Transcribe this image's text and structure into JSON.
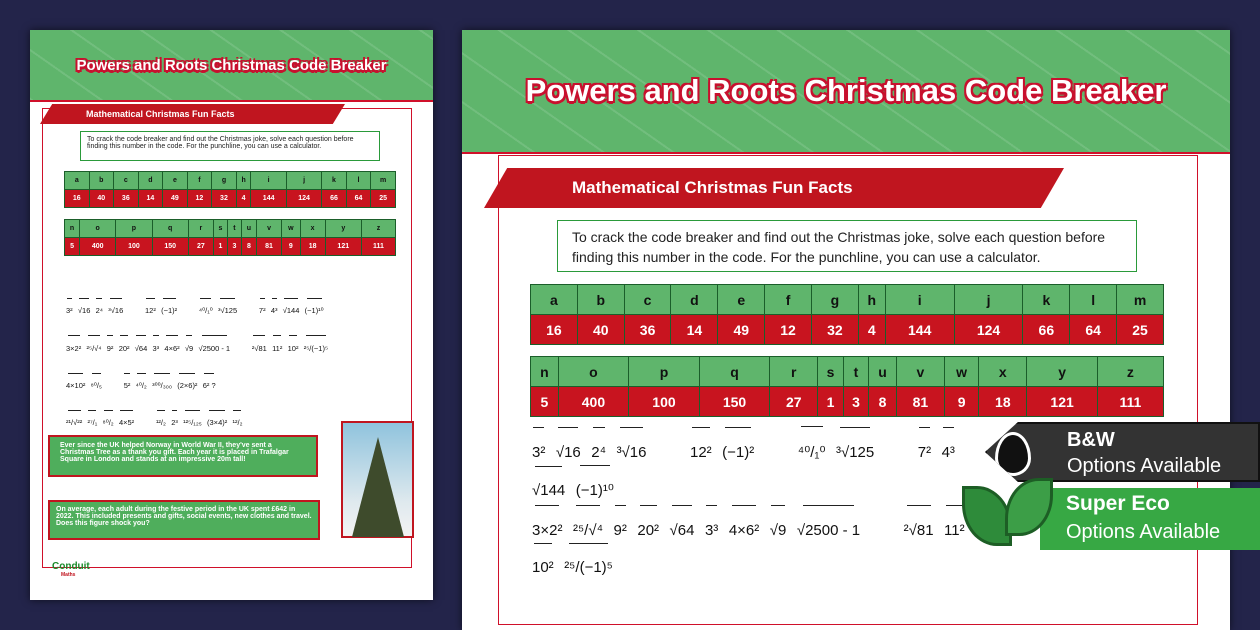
{
  "title": "Powers and Roots Christmas Code Breaker",
  "section": "Mathematical Christmas Fun Facts",
  "intro": "To crack the code breaker and find out the Christmas joke, solve each question before finding this number in the code. For the punchline, you can use a calculator.",
  "code1": {
    "letters": [
      "a",
      "b",
      "c",
      "d",
      "e",
      "f",
      "g",
      "h",
      "i",
      "j",
      "k",
      "l",
      "m"
    ],
    "numbers": [
      "16",
      "40",
      "36",
      "14",
      "49",
      "12",
      "32",
      "4",
      "144",
      "124",
      "66",
      "64",
      "25"
    ]
  },
  "code2": {
    "letters": [
      "n",
      "o",
      "p",
      "q",
      "r",
      "s",
      "t",
      "u",
      "v",
      "w",
      "x",
      "y",
      "z"
    ],
    "numbers": [
      "5",
      "400",
      "100",
      "150",
      "27",
      "1",
      "3",
      "8",
      "81",
      "9",
      "18",
      "121",
      "111"
    ]
  },
  "questions": [
    [
      "3²",
      "√16",
      "2⁴",
      "³√16",
      "",
      "12²",
      "(−1)²",
      "",
      "⁴⁰/₁⁰",
      "³√125",
      "",
      "7²",
      "4³",
      "√144",
      "(−1)¹⁰"
    ],
    [
      "3×2²",
      "²⁵/√⁴",
      "9²",
      "20²",
      "√64",
      "3³",
      "4×6²",
      "√9",
      "√2500 - 1",
      "",
      "²√81",
      "11²",
      "10²",
      "²⁵/(−1)⁵"
    ],
    [
      "4×10²",
      "⁸⁰/₅",
      "",
      "5²",
      "⁴⁰/₂",
      "³⁰⁰/₃₀₀",
      "(2×6)²",
      "6² ?"
    ],
    [
      "²¹/√²²",
      "²⁷/₁",
      "⁸⁰/₂",
      "4×5²",
      "",
      "¹²/₂",
      "2³",
      "¹²⁵/₁₂₅",
      "(3×4)²",
      "¹²/₂"
    ]
  ],
  "facts": [
    "Ever since the UK helped Norway in World War II, they've sent a Christmas Tree as a thank you gift. Each year it is placed in Trafalgar Square in London and stands at an impressive 20m tall!",
    "On average, each adult during the festive period in the UK spent £642 in 2022. This included presents and gifts, social events, new clothes and travel. Does this figure shock you?"
  ],
  "logo": {
    "name": "Conduit",
    "sub": "Maths"
  },
  "badges": {
    "bw_title": "B&W",
    "bw_sub": "Options Available",
    "eco_title": "Super Eco",
    "eco_sub": "Options Available"
  },
  "colors": {
    "background": "#23244a",
    "green": "#5fb56c",
    "red": "#c8141f"
  }
}
